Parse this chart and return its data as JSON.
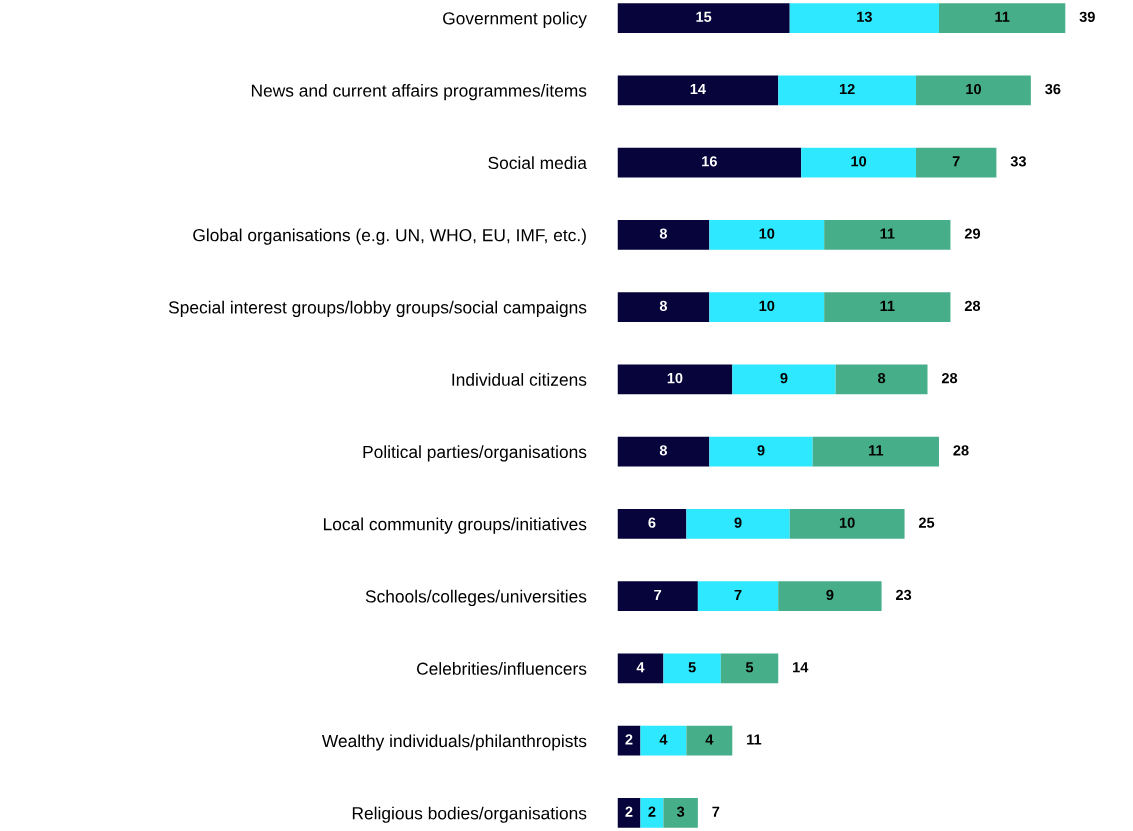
{
  "chart_data": {
    "type": "bar",
    "orientation": "horizontal",
    "stacked": true,
    "data_labels": true,
    "categories": [
      "Government policy",
      "News and current affairs programmes/items",
      "Social media",
      "Global organisations (e.g. UN, WHO, EU, IMF, etc.)",
      "Special interest groups/lobby groups/social campaigns",
      "Individual citizens",
      "Political parties/organisations",
      "Local community groups/initiatives",
      "Schools/colleges/universities",
      "Celebrities/influencers",
      "Wealthy individuals/philanthropists",
      "Religious bodies/organisations"
    ],
    "series": [
      {
        "color": "#06043a",
        "values": [
          15,
          14,
          16,
          8,
          8,
          10,
          8,
          6,
          7,
          4,
          2,
          2
        ]
      },
      {
        "color": "#2ee8ff",
        "values": [
          13,
          12,
          10,
          10,
          10,
          9,
          9,
          9,
          7,
          5,
          4,
          2
        ]
      },
      {
        "color": "#47ae8a",
        "values": [
          11,
          10,
          7,
          11,
          11,
          8,
          11,
          10,
          9,
          5,
          4,
          3
        ]
      }
    ],
    "totals": [
      "39",
      "36",
      "33",
      "29",
      "28",
      "28",
      "28",
      "25",
      "23",
      "14",
      "11",
      "7"
    ],
    "grid": false,
    "legend": false
  }
}
